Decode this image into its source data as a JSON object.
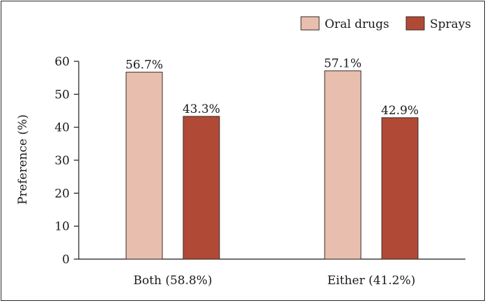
{
  "chart_data": {
    "type": "bar",
    "categories": [
      "Both (58.8%)",
      "Either (41.2%)"
    ],
    "series": [
      {
        "name": "Oral drugs",
        "values": [
          56.7,
          57.1
        ],
        "labels": [
          "56.7%",
          "57.1%"
        ],
        "color": "#e8bfae"
      },
      {
        "name": "Sprays",
        "values": [
          43.3,
          42.9
        ],
        "labels": [
          "43.3%",
          "42.9%"
        ],
        "color": "#b04a37"
      }
    ],
    "title": "",
    "xlabel": "",
    "ylabel": "Preference (%)",
    "ylim": [
      0,
      60
    ],
    "yticks": [
      0,
      10,
      20,
      30,
      40,
      50,
      60
    ],
    "legend_position": "top-right",
    "grid": false
  }
}
